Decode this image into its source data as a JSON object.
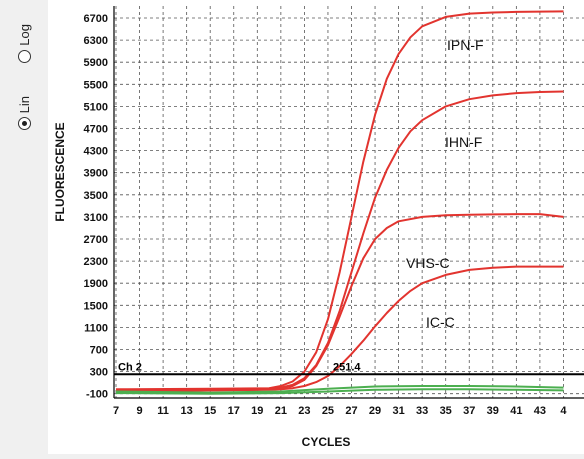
{
  "scale_options": [
    {
      "label": "Log",
      "selected": false
    },
    {
      "label": "Lin",
      "selected": true
    }
  ],
  "chart_data": {
    "type": "line",
    "xlabel": "CYCLES",
    "ylabel": "FLUORESCENCE",
    "x_ticks": [
      "7",
      "9",
      "11",
      "13",
      "15",
      "17",
      "19",
      "21",
      "23",
      "25",
      "27",
      "29",
      "31",
      "33",
      "35",
      "37",
      "39",
      "41",
      "43",
      "4"
    ],
    "y_ticks": [
      "6700",
      "6300",
      "5900",
      "5500",
      "5100",
      "4700",
      "4300",
      "3900",
      "3500",
      "3100",
      "2700",
      "2300",
      "1900",
      "1500",
      "1100",
      "700",
      "300",
      "-100"
    ],
    "xlim": [
      7,
      45
    ],
    "ylim": [
      -100,
      6700
    ],
    "grid": true,
    "threshold": {
      "channel_label": "Ch 2",
      "value_label": "251.4",
      "value": 251.4
    },
    "colors": {
      "amplification": "#e2342f",
      "baseline": "#4caf50",
      "threshold": "#000000",
      "grid": "#555555"
    },
    "series": [
      {
        "name": "IPN-F",
        "color": "#e2342f",
        "x": [
          7,
          15,
          20,
          21,
          22,
          23,
          24,
          25,
          26,
          27,
          28,
          29,
          30,
          31,
          32,
          33,
          35,
          37,
          39,
          41,
          43,
          45
        ],
        "y": [
          -20,
          -10,
          0,
          40,
          120,
          300,
          650,
          1250,
          2100,
          3100,
          4100,
          4950,
          5600,
          6050,
          6350,
          6550,
          6720,
          6780,
          6800,
          6810,
          6815,
          6820
        ]
      },
      {
        "name": "IHN-F",
        "color": "#e2342f",
        "x": [
          7,
          15,
          20,
          21,
          22,
          23,
          24,
          25,
          26,
          27,
          28,
          29,
          30,
          31,
          32,
          33,
          35,
          37,
          39,
          41,
          43,
          45
        ],
        "y": [
          -30,
          -20,
          -10,
          10,
          60,
          180,
          420,
          820,
          1400,
          2100,
          2800,
          3450,
          3950,
          4350,
          4650,
          4850,
          5100,
          5230,
          5300,
          5340,
          5360,
          5370
        ]
      },
      {
        "name": "VHS-C",
        "color": "#e2342f",
        "x": [
          7,
          15,
          20,
          21,
          22,
          23,
          24,
          25,
          26,
          27,
          28,
          29,
          30,
          31,
          33,
          35,
          37,
          39,
          41,
          43,
          45
        ],
        "y": [
          -40,
          -30,
          -20,
          0,
          40,
          150,
          400,
          780,
          1300,
          1850,
          2350,
          2700,
          2900,
          3020,
          3100,
          3130,
          3140,
          3145,
          3150,
          3150,
          3100
        ]
      },
      {
        "name": "IC-C",
        "color": "#e2342f",
        "x": [
          7,
          15,
          20,
          21,
          22,
          23,
          24,
          25,
          26,
          27,
          28,
          29,
          30,
          31,
          32,
          33,
          35,
          37,
          39,
          41,
          43,
          45
        ],
        "y": [
          -50,
          -40,
          -30,
          -20,
          0,
          40,
          110,
          220,
          400,
          620,
          860,
          1120,
          1360,
          1580,
          1760,
          1900,
          2050,
          2140,
          2180,
          2200,
          2200,
          2200
        ]
      },
      {
        "name": "",
        "color": "#4caf50",
        "x": [
          7,
          15,
          21,
          25,
          29,
          33,
          37,
          41,
          45
        ],
        "y": [
          -60,
          -80,
          -60,
          -10,
          30,
          40,
          40,
          30,
          10
        ]
      },
      {
        "name": "",
        "color": "#4caf50",
        "x": [
          7,
          15,
          21,
          25,
          29,
          33,
          37,
          41,
          45
        ],
        "y": [
          -90,
          -100,
          -90,
          -60,
          -30,
          -20,
          -20,
          -30,
          -40
        ]
      }
    ]
  }
}
